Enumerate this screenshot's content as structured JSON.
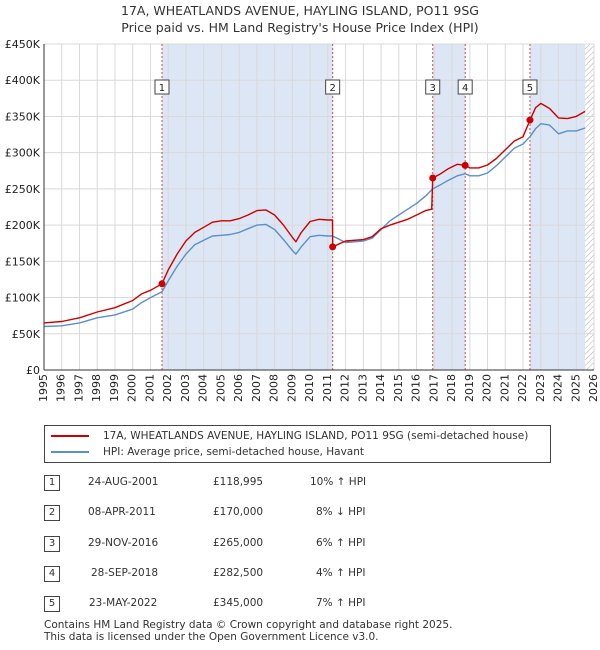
{
  "title": {
    "line1": "17A, WHEATLANDS AVENUE, HAYLING ISLAND, PO11 9SG",
    "line2": "Price paid vs. HM Land Registry's House Price Index (HPI)"
  },
  "colors": {
    "property": "#cc0000",
    "hpi": "#5b8fc9",
    "shade": "#dde6f5",
    "grid": "#d9d9d9",
    "marker_line": "#dd4444"
  },
  "legend": {
    "property_label": "17A, WHEATLANDS AVENUE, HAYLING ISLAND, PO11 9SG (semi-detached house)",
    "hpi_label": "HPI: Average price, semi-detached house, Havant"
  },
  "transactions": [
    {
      "num": "1",
      "date": "24-AUG-2001",
      "price": "£118,995",
      "hpi": "10% ↑ HPI"
    },
    {
      "num": "2",
      "date": "08-APR-2011",
      "price": "£170,000",
      "hpi": "8% ↓ HPI"
    },
    {
      "num": "3",
      "date": "29-NOV-2016",
      "price": "£265,000",
      "hpi": "6% ↑ HPI"
    },
    {
      "num": "4",
      "date": "28-SEP-2018",
      "price": "£282,500",
      "hpi": "4% ↑ HPI"
    },
    {
      "num": "5",
      "date": "23-MAY-2022",
      "price": "£345,000",
      "hpi": "7% ↑ HPI"
    }
  ],
  "footer": {
    "line1": "Contains HM Land Registry data © Crown copyright and database right 2025.",
    "line2": "This data is licensed under the Open Government Licence v3.0."
  },
  "chart_data": {
    "type": "line",
    "title": "Price paid vs. HM Land Registry's House Price Index (HPI)",
    "xlabel": "",
    "ylabel": "",
    "xlim": [
      1995,
      2026
    ],
    "ylim": [
      0,
      450000
    ],
    "y_ticks": [
      0,
      50000,
      100000,
      150000,
      200000,
      250000,
      300000,
      350000,
      400000,
      450000
    ],
    "y_tick_labels": [
      "£0",
      "£50K",
      "£100K",
      "£150K",
      "£200K",
      "£250K",
      "£300K",
      "£350K",
      "£400K",
      "£450K"
    ],
    "x_ticks": [
      1995,
      1996,
      1997,
      1998,
      1999,
      2000,
      2001,
      2002,
      2003,
      2004,
      2005,
      2006,
      2007,
      2008,
      2009,
      2010,
      2011,
      2012,
      2013,
      2014,
      2015,
      2016,
      2017,
      2018,
      2019,
      2020,
      2021,
      2022,
      2023,
      2024,
      2025,
      2026
    ],
    "grid": true,
    "legend_position": "bottom",
    "shaded_periods": [
      [
        2001.65,
        2011.27
      ],
      [
        2016.91,
        2018.74
      ],
      [
        2022.39,
        2025.5
      ]
    ],
    "hatched_from": 2025.5,
    "sales": [
      {
        "label": "1",
        "x": 2001.65,
        "y": 118995
      },
      {
        "label": "2",
        "x": 2011.27,
        "y": 170000
      },
      {
        "label": "3",
        "x": 2016.91,
        "y": 265000
      },
      {
        "label": "4",
        "x": 2018.74,
        "y": 282500
      },
      {
        "label": "5",
        "x": 2022.39,
        "y": 345000
      }
    ],
    "series": [
      {
        "name": "17A, WHEATLANDS AVENUE, HAYLING ISLAND, PO11 9SG (semi-detached house)",
        "x": [
          1995.0,
          1996.0,
          1997.0,
          1998.0,
          1999.0,
          2000.0,
          2000.5,
          2001.0,
          2001.65,
          2002.0,
          2002.5,
          2003.0,
          2003.5,
          2004.0,
          2004.5,
          2005.0,
          2005.5,
          2006.0,
          2006.5,
          2007.0,
          2007.5,
          2008.0,
          2008.5,
          2009.0,
          2009.2,
          2009.5,
          2010.0,
          2010.5,
          2011.0,
          2011.26,
          2011.27,
          2012.0,
          2013.0,
          2013.5,
          2014.0,
          2014.5,
          2015.0,
          2015.5,
          2016.0,
          2016.5,
          2016.85,
          2016.91,
          2017.3,
          2017.8,
          2018.3,
          2018.74,
          2019.0,
          2019.5,
          2020.0,
          2020.5,
          2021.0,
          2021.5,
          2022.0,
          2022.39,
          2022.7,
          2023.0,
          2023.5,
          2024.0,
          2024.5,
          2025.0,
          2025.5
        ],
        "y": [
          65000,
          67000,
          72000,
          80000,
          86000,
          96000,
          105000,
          110000,
          118995,
          138000,
          160000,
          178000,
          190000,
          197000,
          204000,
          206000,
          206000,
          209000,
          214000,
          220000,
          221000,
          214000,
          200000,
          183000,
          177000,
          190000,
          205000,
          208000,
          207000,
          207000,
          170000,
          178000,
          180000,
          184000,
          195000,
          200000,
          204000,
          208000,
          214000,
          220000,
          222000,
          265000,
          270000,
          278000,
          284000,
          282500,
          279000,
          279000,
          283000,
          292000,
          304000,
          316000,
          322000,
          345000,
          362000,
          368000,
          361000,
          348000,
          347000,
          350000,
          357000
        ]
      },
      {
        "name": "HPI: Average price, semi-detached house, Havant",
        "x": [
          1995.0,
          1996.0,
          1997.0,
          1998.0,
          1999.0,
          2000.0,
          2000.5,
          2001.0,
          2001.65,
          2002.0,
          2002.5,
          2003.0,
          2003.5,
          2004.0,
          2004.5,
          2005.0,
          2005.5,
          2006.0,
          2006.5,
          2007.0,
          2007.5,
          2008.0,
          2008.5,
          2009.0,
          2009.2,
          2009.5,
          2010.0,
          2010.5,
          2011.0,
          2011.27,
          2012.0,
          2013.0,
          2013.5,
          2014.0,
          2014.5,
          2015.0,
          2015.5,
          2016.0,
          2016.5,
          2016.91,
          2017.3,
          2017.8,
          2018.3,
          2018.74,
          2019.0,
          2019.5,
          2020.0,
          2020.5,
          2021.0,
          2021.5,
          2022.0,
          2022.39,
          2022.7,
          2023.0,
          2023.5,
          2024.0,
          2024.5,
          2025.0,
          2025.5
        ],
        "y": [
          60000,
          61000,
          65000,
          72000,
          76000,
          84000,
          93000,
          100000,
          108000,
          123000,
          143000,
          160000,
          173000,
          179000,
          185000,
          186000,
          187000,
          190000,
          195000,
          200000,
          201000,
          194000,
          180000,
          165000,
          160000,
          170000,
          184000,
          186000,
          185000,
          185000,
          176000,
          178000,
          182000,
          194000,
          206000,
          214000,
          222000,
          230000,
          240000,
          250000,
          255000,
          262000,
          268000,
          271000,
          268000,
          268000,
          272000,
          282000,
          294000,
          306000,
          312000,
          322000,
          333000,
          340000,
          338000,
          326000,
          330000,
          330000,
          334000
        ]
      }
    ]
  }
}
